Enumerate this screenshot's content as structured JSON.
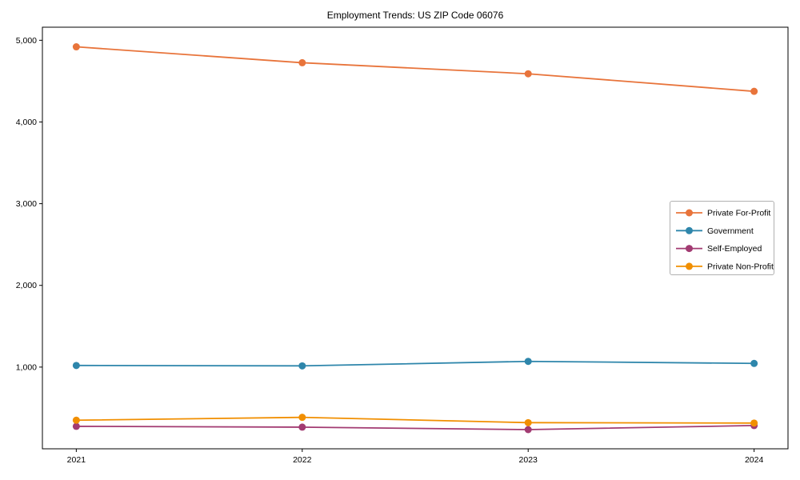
{
  "title": "Employment Trends: US ZIP Code 06076",
  "chart_data": {
    "type": "line",
    "title": "Employment Trends: US ZIP Code 06076",
    "xlabel": "",
    "ylabel": "",
    "x": [
      2021,
      2022,
      2023,
      2024
    ],
    "x_tick_labels": [
      "2021",
      "2022",
      "2023",
      "2024"
    ],
    "series": [
      {
        "name": "Private For-Profit",
        "color": "#e8743b",
        "values": [
          4920,
          4725,
          4590,
          4375
        ]
      },
      {
        "name": "Government",
        "color": "#2e86ab",
        "values": [
          1020,
          1015,
          1070,
          1045
        ]
      },
      {
        "name": "Self-Employed",
        "color": "#a23b72",
        "values": [
          275,
          265,
          235,
          285
        ]
      },
      {
        "name": "Private Non-Profit",
        "color": "#f18f01",
        "values": [
          350,
          385,
          320,
          315
        ]
      }
    ],
    "xlim": [
      2020.85,
      2024.15
    ],
    "ylim": [
      0,
      5160
    ],
    "yticks": [
      {
        "value": 1000,
        "label": "1,000"
      },
      {
        "value": 2000,
        "label": "2,000"
      },
      {
        "value": 3000,
        "label": "3,000"
      },
      {
        "value": 4000,
        "label": "4,000"
      },
      {
        "value": 5000,
        "label": "5,000"
      }
    ],
    "grid": false,
    "legend_position": "center right",
    "marker": "circle",
    "line_width": 1.8,
    "marker_radius": 4.5
  },
  "colors": {
    "background": "#ffffff",
    "axis": "#000000",
    "tick": "#000000",
    "legend_border": "#b0b0b0",
    "legend_background": "#ffffff"
  }
}
